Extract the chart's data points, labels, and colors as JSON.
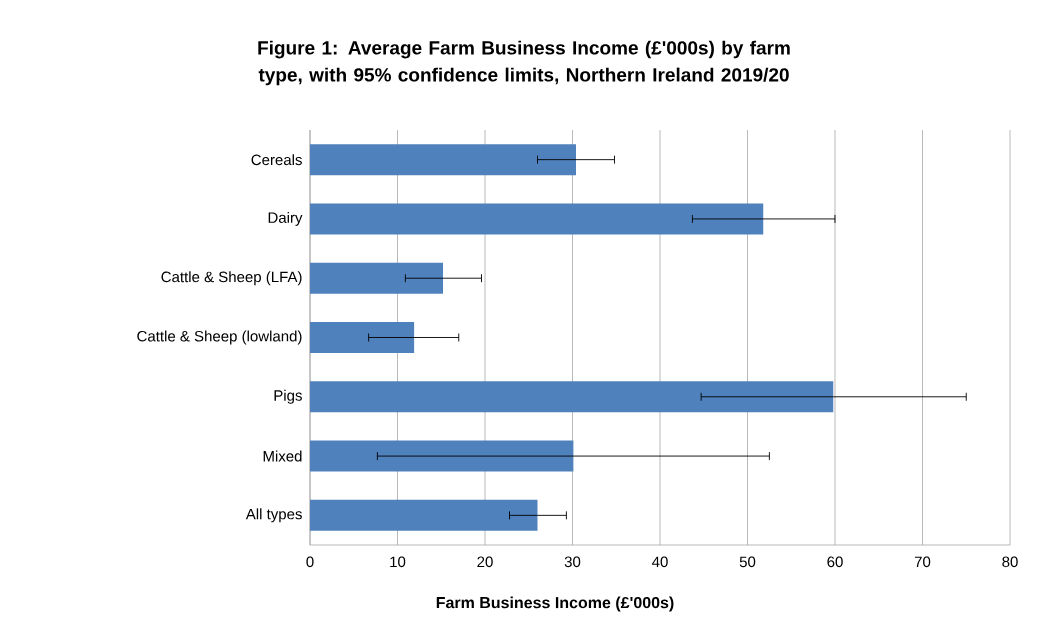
{
  "chart_data": {
    "type": "bar",
    "orientation": "horizontal",
    "title": "Figure 1: Average Farm Business Income (£'000s) by farm type, with 95% confidence limits, Northern Ireland 2019/20",
    "xlabel": "Farm Business Income (£'000s)",
    "categories": [
      "Cereals",
      "Dairy",
      "Cattle & Sheep (LFA)",
      "Cattle & Sheep (lowland)",
      "Pigs",
      "Mixed",
      "All types"
    ],
    "values": [
      30.4,
      51.8,
      15.2,
      11.9,
      59.8,
      30.1,
      26.0
    ],
    "errors": [
      [
        26.0,
        34.8
      ],
      [
        43.7,
        60.0
      ],
      [
        10.9,
        19.6
      ],
      [
        6.7,
        17.0
      ],
      [
        44.7,
        75.0
      ],
      [
        7.7,
        52.5
      ],
      [
        22.8,
        29.3
      ]
    ],
    "color": "#4f81bd",
    "xlim": [
      0,
      80
    ],
    "xticks": [
      0,
      10,
      20,
      30,
      40,
      50,
      60,
      70,
      80
    ],
    "grid": "x"
  }
}
